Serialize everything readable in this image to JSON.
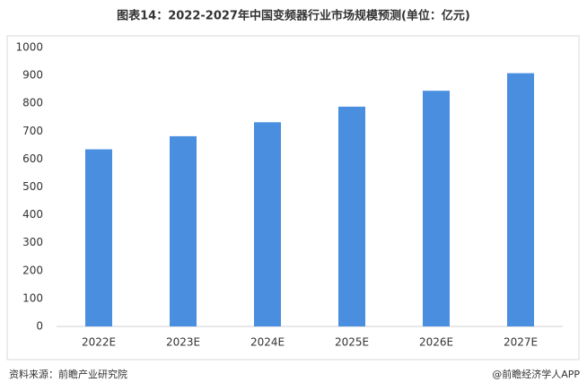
{
  "chart_data": {
    "type": "bar",
    "title": "图表14：2022-2027年中国变频器行业市场规模预测(单位：亿元)",
    "categories": [
      "2022E",
      "2023E",
      "2024E",
      "2025E",
      "2026E",
      "2027E"
    ],
    "values": [
      635,
      682,
      732,
      788,
      845,
      908
    ],
    "color": "#4a8ee0",
    "ylim": [
      0,
      1000
    ],
    "yticks": [
      0,
      100,
      200,
      300,
      400,
      500,
      600,
      700,
      800,
      900,
      1000
    ],
    "grid": false,
    "source": "资料来源：前瞻产业研究院",
    "credit": "@前瞻经济学人APP"
  }
}
